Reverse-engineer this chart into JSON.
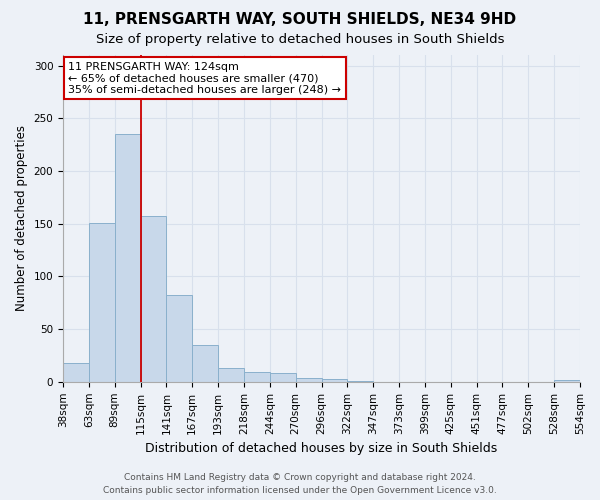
{
  "title": "11, PRENSGARTH WAY, SOUTH SHIELDS, NE34 9HD",
  "subtitle": "Size of property relative to detached houses in South Shields",
  "xlabel": "Distribution of detached houses by size in South Shields",
  "ylabel": "Number of detached properties",
  "bar_values": [
    18,
    151,
    235,
    157,
    82,
    35,
    13,
    9,
    8,
    4,
    3,
    1,
    0,
    0,
    0,
    0,
    0,
    0,
    0,
    2
  ],
  "bar_labels": [
    "38sqm",
    "63sqm",
    "89sqm",
    "115sqm",
    "141sqm",
    "167sqm",
    "193sqm",
    "218sqm",
    "244sqm",
    "270sqm",
    "296sqm",
    "322sqm",
    "347sqm",
    "373sqm",
    "399sqm",
    "425sqm",
    "451sqm",
    "477sqm",
    "502sqm",
    "528sqm",
    "554sqm"
  ],
  "bar_color": "#c8d8ea",
  "bar_edge_color": "#8ab0cc",
  "grid_color": "#d8e0ec",
  "bg_color": "#edf1f7",
  "red_line_x": 2.5,
  "annotation_title": "11 PRENSGARTH WAY: 124sqm",
  "annotation_line1": "← 65% of detached houses are smaller (470)",
  "annotation_line2": "35% of semi-detached houses are larger (248) →",
  "annotation_box_color": "#ffffff",
  "annotation_border_color": "#cc0000",
  "red_line_color": "#cc0000",
  "footer_line1": "Contains HM Land Registry data © Crown copyright and database right 2024.",
  "footer_line2": "Contains public sector information licensed under the Open Government Licence v3.0.",
  "ylim": [
    0,
    310
  ],
  "yticks": [
    0,
    50,
    100,
    150,
    200,
    250,
    300
  ],
  "title_fontsize": 11,
  "subtitle_fontsize": 9.5,
  "ylabel_fontsize": 8.5,
  "xlabel_fontsize": 9,
  "tick_fontsize": 7.5
}
